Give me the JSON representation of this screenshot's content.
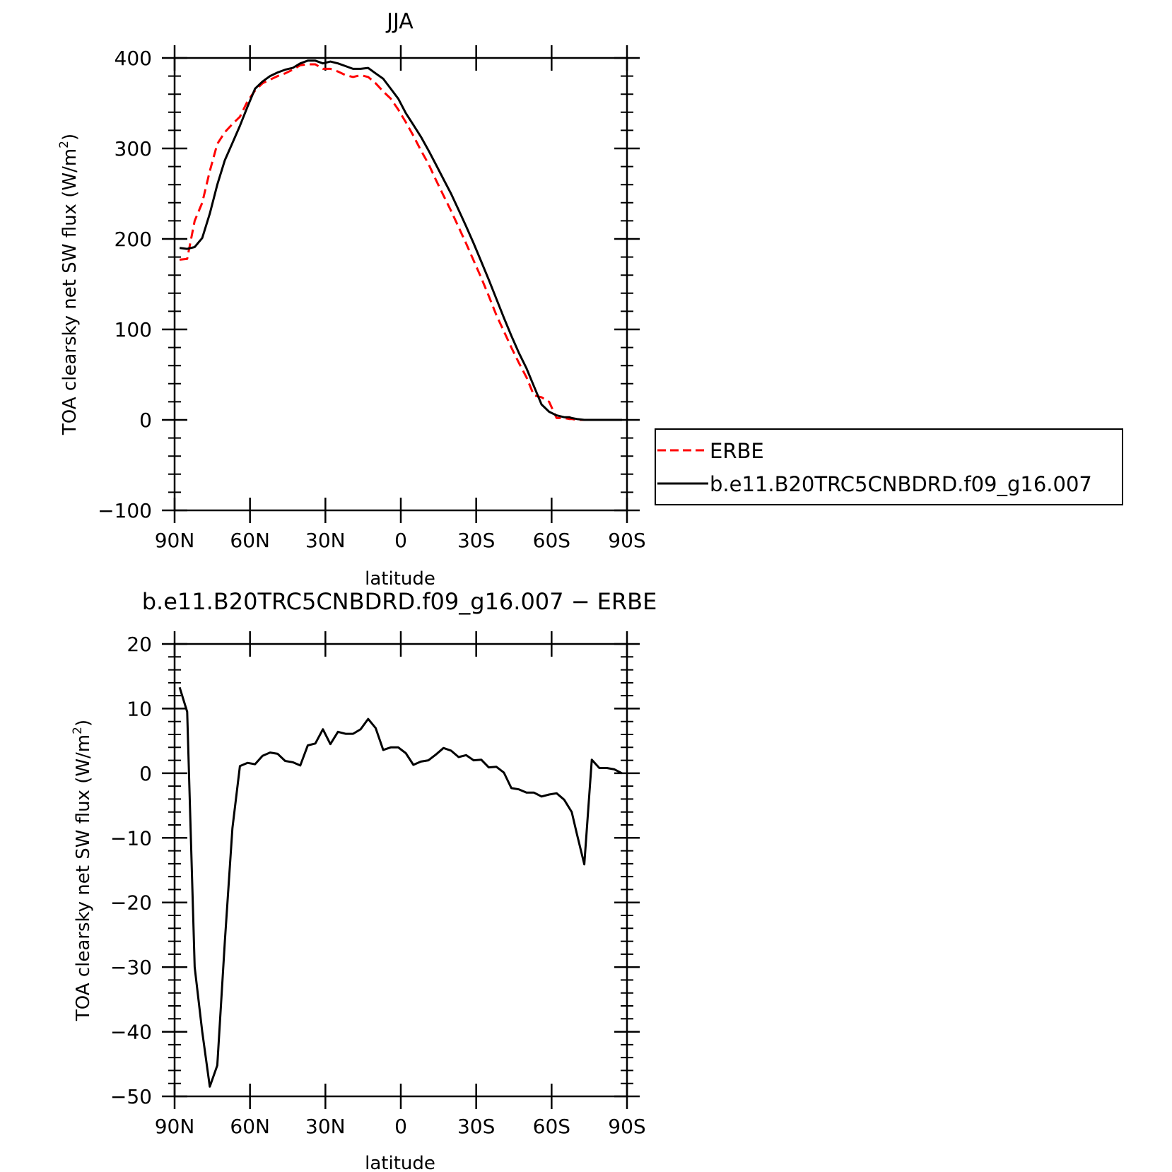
{
  "chart_data": [
    {
      "type": "line",
      "title": "JJA",
      "xlabel": "latitude",
      "ylabel": "TOA clearsky net SW flux (W/m²)",
      "ylabel_main": "TOA clearsky net SW flux (W/m",
      "ylabel_sup": "2",
      "ylabel_end": ")",
      "xlim": [
        90,
        -90
      ],
      "ylim": [
        -100,
        400
      ],
      "x_ticks": [
        90,
        60,
        30,
        0,
        -30,
        -60,
        -90
      ],
      "x_tick_labels": [
        "90N",
        "60N",
        "30N",
        "0",
        "30S",
        "60S",
        "90S"
      ],
      "y_ticks": [
        -100,
        0,
        100,
        200,
        300,
        400
      ],
      "y_tick_labels": [
        "−100",
        "0",
        "100",
        "200",
        "300",
        "400"
      ],
      "legend_position": "right",
      "series": [
        {
          "name": "ERBE",
          "color": "#ff0000",
          "dash": true,
          "x": [
            88,
            85,
            82,
            79,
            76,
            73,
            70,
            67,
            64,
            61,
            58,
            55,
            52,
            49,
            46,
            43,
            40,
            37,
            34,
            31,
            28,
            25,
            22,
            19,
            16,
            13,
            10,
            7,
            4,
            1,
            -2,
            -5,
            -8,
            -11,
            -14,
            -17,
            -20,
            -23,
            -26,
            -29,
            -32,
            -35,
            -38,
            -41,
            -44,
            -47,
            -50,
            -53,
            -56,
            -59,
            -62,
            -65,
            -67,
            -68,
            -70,
            -73,
            -76,
            -79,
            -82,
            -85,
            -88
          ],
          "y": [
            177,
            178,
            220,
            240,
            275,
            305,
            318,
            327,
            335,
            352,
            364,
            372,
            376,
            380,
            383,
            387,
            392,
            393,
            393,
            388,
            388,
            385,
            381,
            379,
            381,
            379,
            372,
            363,
            355,
            343,
            329,
            314,
            298,
            283,
            265,
            248,
            231,
            213,
            195,
            176,
            157,
            137,
            116,
            98,
            80,
            63,
            47,
            27,
            25,
            20,
            2,
            2,
            1,
            1,
            0,
            0,
            0,
            0,
            0,
            0,
            0
          ]
        },
        {
          "name": "b.e11.B20TRC5CNBDRD.f09_g16.007",
          "color": "#000000",
          "dash": false,
          "x": [
            88,
            85,
            82,
            79,
            76,
            73,
            70,
            67,
            64,
            61,
            58,
            55,
            52,
            49,
            46,
            43,
            40,
            37,
            34,
            31,
            28,
            25,
            22,
            19,
            16,
            13,
            10,
            7,
            4,
            1,
            -2,
            -5,
            -8,
            -11,
            -14,
            -17,
            -20,
            -23,
            -26,
            -29,
            -32,
            -35,
            -38,
            -41,
            -44,
            -47,
            -50,
            -53,
            -56,
            -59,
            -62,
            -65,
            -67,
            -68,
            -70,
            -73,
            -76,
            -79,
            -82,
            -85,
            -88
          ],
          "y": [
            190,
            189,
            191,
            201,
            228,
            260,
            287,
            306,
            325,
            346,
            366,
            374,
            380,
            384,
            387,
            389,
            394,
            397,
            397,
            394,
            396,
            394,
            391,
            388,
            388,
            389,
            383,
            377,
            366,
            355,
            339,
            326,
            313,
            298,
            282,
            266,
            250,
            232,
            214,
            195,
            175,
            155,
            134,
            113,
            93,
            74,
            57,
            37,
            17,
            9,
            5,
            3,
            3,
            2,
            1,
            0,
            0,
            0,
            0,
            0,
            0
          ]
        }
      ]
    },
    {
      "type": "line",
      "title": "b.e11.B20TRC5CNBDRD.f09_g16.007 − ERBE",
      "xlabel": "latitude",
      "ylabel": "TOA clearsky net SW flux (W/m²)",
      "ylabel_main": "TOA clearsky net SW flux (W/m",
      "ylabel_sup": "2",
      "ylabel_end": ")",
      "xlim": [
        90,
        -90
      ],
      "ylim": [
        -50,
        20
      ],
      "x_ticks": [
        90,
        60,
        30,
        0,
        -30,
        -60,
        -90
      ],
      "x_tick_labels": [
        "90N",
        "60N",
        "30N",
        "0",
        "30S",
        "60S",
        "90S"
      ],
      "y_ticks": [
        -50,
        -40,
        -30,
        -20,
        -10,
        0,
        10,
        20
      ],
      "y_tick_labels": [
        "−50",
        "−40",
        "−30",
        "−20",
        "−10",
        "0",
        "10",
        "20"
      ],
      "series": [
        {
          "name": "b.e11.B20TRC5CNBDRD.f09_g16.007 − ERBE",
          "color": "#000000",
          "dash": false,
          "x": [
            88,
            85,
            82,
            79,
            76,
            73,
            70,
            67,
            64,
            61,
            58,
            55,
            52,
            49,
            46,
            43,
            40,
            37,
            34,
            31,
            28,
            25,
            22,
            19,
            16,
            13,
            10,
            7,
            4,
            1,
            -2,
            -5,
            -8,
            -11,
            -14,
            -17,
            -20,
            -23,
            -26,
            -29,
            -32,
            -35,
            -38,
            -41,
            -44,
            -47,
            -50,
            -53,
            -56,
            -59,
            -62,
            -65,
            -68,
            -70,
            -73,
            -76,
            -79,
            -82,
            -85,
            -88
          ],
          "y": [
            13.3,
            9.5,
            -30,
            -40,
            -48.5,
            -45.2,
            -26,
            -8.5,
            1.1,
            1.6,
            1.4,
            2.7,
            3.2,
            3.0,
            1.9,
            1.7,
            1.2,
            4.3,
            4.6,
            6.8,
            4.5,
            6.4,
            6.1,
            6.1,
            6.8,
            8.4,
            7.0,
            3.6,
            4.0,
            4.0,
            3.1,
            1.3,
            1.8,
            2.0,
            2.9,
            3.9,
            3.5,
            2.5,
            2.8,
            2.0,
            2.1,
            0.9,
            1.0,
            0.1,
            -2.3,
            -2.5,
            -3.0,
            -3.0,
            -3.6,
            -3.3,
            -3.1,
            -4.1,
            -6.0,
            -9.3,
            -14.1,
            2.1,
            0.8,
            0.8,
            0.6,
            0.0
          ]
        }
      ]
    }
  ]
}
